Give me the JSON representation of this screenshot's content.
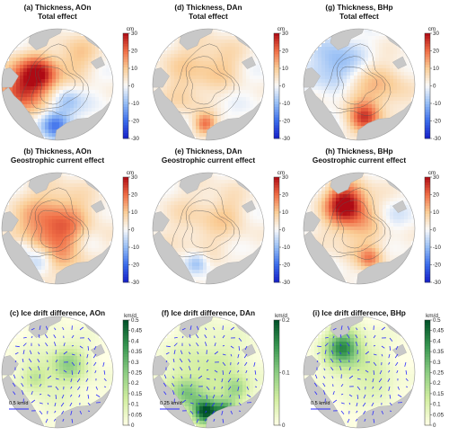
{
  "chart_data": [
    {
      "id": "a",
      "type": "heatmap",
      "title_line1": "(a) Thickness, AOn",
      "title_line2": "Total effect",
      "unit": "cm",
      "clim": [
        -30,
        30
      ],
      "ticks": [
        30,
        20,
        10,
        0,
        -10,
        -20,
        -30
      ],
      "colormap": "diverging",
      "blobs": [
        [
          -0.6,
          0.05,
          0.35,
          24
        ],
        [
          -0.3,
          -0.2,
          0.22,
          18
        ],
        [
          -0.05,
          0.72,
          0.18,
          -20
        ],
        [
          0.35,
          -0.5,
          0.3,
          10
        ],
        [
          0.15,
          0.3,
          0.18,
          -10
        ]
      ]
    },
    {
      "id": "d",
      "type": "heatmap",
      "title_line1": "(d) Thickness, DAn",
      "title_line2": "Total effect",
      "unit": "cm",
      "clim": [
        -30,
        30
      ],
      "ticks": [
        30,
        20,
        10,
        0,
        -10,
        -20,
        -30
      ],
      "colormap": "diverging",
      "blobs": [
        [
          -0.3,
          -0.3,
          0.45,
          8
        ],
        [
          -0.05,
          0.72,
          0.14,
          18
        ],
        [
          0.3,
          -0.4,
          0.3,
          6
        ],
        [
          -0.45,
          0.25,
          0.22,
          5
        ]
      ]
    },
    {
      "id": "g",
      "type": "heatmap",
      "title_line1": "(g) Thickness, BHp",
      "title_line2": "Total effect",
      "unit": "cm",
      "clim": [
        -30,
        30
      ],
      "ticks": [
        30,
        20,
        10,
        0,
        -10,
        -20,
        -30
      ],
      "colormap": "diverging",
      "blobs": [
        [
          -0.4,
          -0.35,
          0.3,
          -12
        ],
        [
          0.1,
          0.62,
          0.2,
          22
        ],
        [
          0.45,
          0.05,
          0.35,
          10
        ],
        [
          -0.1,
          0.1,
          0.25,
          6
        ]
      ]
    },
    {
      "id": "b",
      "type": "heatmap",
      "title_line1": "(b) Thickness, AOn",
      "title_line2": "Geostrophic current effect",
      "unit": "cm",
      "clim": [
        -30,
        30
      ],
      "ticks": [
        30,
        20,
        10,
        0,
        -10,
        -20,
        -30
      ],
      "colormap": "diverging",
      "blobs": [
        [
          -0.05,
          0.05,
          0.5,
          22
        ],
        [
          -0.3,
          0.55,
          0.18,
          -14
        ],
        [
          0.55,
          0.2,
          0.2,
          -6
        ],
        [
          -0.65,
          0.35,
          0.15,
          -10
        ]
      ]
    },
    {
      "id": "e",
      "type": "heatmap",
      "title_line1": "(e) Thickness, DAn",
      "title_line2": "Geostrophic current effect",
      "unit": "cm",
      "clim": [
        -30,
        30
      ],
      "ticks": [
        30,
        20,
        10,
        0,
        -10,
        -20,
        -30
      ],
      "colormap": "diverging",
      "blobs": [
        [
          -0.1,
          -0.1,
          0.55,
          7
        ],
        [
          -0.2,
          0.62,
          0.14,
          -12
        ],
        [
          0.4,
          -0.3,
          0.25,
          4
        ]
      ]
    },
    {
      "id": "h",
      "type": "heatmap",
      "title_line1": "(h) Thickness, BHp",
      "title_line2": "Geostrophic current effect",
      "unit": "cm",
      "clim": [
        -30,
        30
      ],
      "ticks": [
        30,
        20,
        10,
        0,
        -10,
        -20,
        -30
      ],
      "colormap": "diverging",
      "blobs": [
        [
          -0.25,
          -0.45,
          0.25,
          28
        ],
        [
          0.0,
          -0.05,
          0.45,
          10
        ],
        [
          0.2,
          0.55,
          0.15,
          14
        ],
        [
          0.55,
          -0.2,
          0.2,
          -6
        ]
      ]
    },
    {
      "id": "c",
      "type": "heatmap",
      "title_line1": "(c) Ice drift difference, AOn",
      "unit": "km/d",
      "clim": [
        0,
        0.5
      ],
      "ticks": [
        0.5,
        0.45,
        0.4,
        0.35,
        0.3,
        0.25,
        0.2,
        0.15,
        0.1,
        0.05,
        0
      ],
      "colormap": "sequential-green",
      "ref_arrow": "0.5 km/d",
      "blobs": [
        [
          0.0,
          0.0,
          0.5,
          0.08
        ],
        [
          0.2,
          -0.15,
          0.2,
          0.16
        ],
        [
          -0.4,
          0.1,
          0.15,
          0.12
        ]
      ]
    },
    {
      "id": "f",
      "type": "heatmap",
      "title_line1": "(f) Ice drift difference, DAn",
      "unit": "km/d",
      "clim": [
        0,
        0.2
      ],
      "ticks": [
        0.2,
        0.1,
        0
      ],
      "colormap": "sequential-green",
      "ref_arrow": "0.25 km/d",
      "blobs": [
        [
          0.0,
          0.0,
          0.55,
          0.05
        ],
        [
          -0.05,
          0.72,
          0.15,
          0.18
        ],
        [
          0.3,
          0.7,
          0.14,
          0.13
        ],
        [
          -0.4,
          0.4,
          0.2,
          0.08
        ],
        [
          0.5,
          0.3,
          0.15,
          0.07
        ]
      ]
    },
    {
      "id": "i",
      "type": "heatmap",
      "title_line1": "(i) Ice drift difference, BHp",
      "unit": "km/d",
      "clim": [
        0,
        0.5
      ],
      "ticks": [
        0.5,
        0.45,
        0.4,
        0.35,
        0.3,
        0.25,
        0.2,
        0.15,
        0.1,
        0.05,
        0
      ],
      "colormap": "sequential-green",
      "ref_arrow": "0.5 km/d",
      "blobs": [
        [
          -0.3,
          -0.45,
          0.22,
          0.35
        ],
        [
          0.0,
          -0.1,
          0.4,
          0.1
        ],
        [
          0.4,
          0.3,
          0.2,
          0.06
        ]
      ]
    }
  ]
}
